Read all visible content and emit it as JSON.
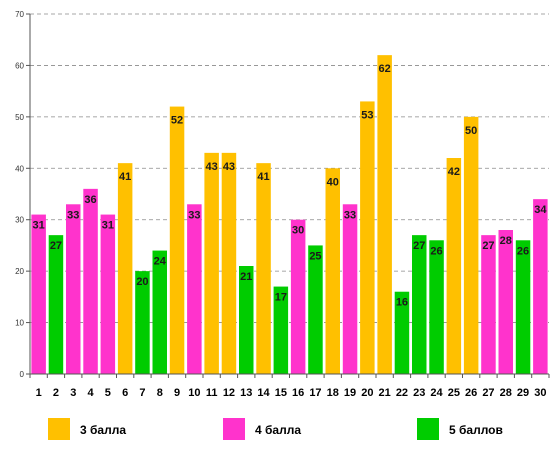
{
  "chart_data": {
    "type": "bar",
    "categories": [
      "1",
      "2",
      "3",
      "4",
      "5",
      "6",
      "7",
      "8",
      "9",
      "10",
      "11",
      "12",
      "13",
      "14",
      "15",
      "16",
      "17",
      "18",
      "19",
      "20",
      "21",
      "22",
      "23",
      "24",
      "25",
      "26",
      "27",
      "28",
      "29",
      "30"
    ],
    "values": [
      31,
      27,
      33,
      36,
      31,
      41,
      20,
      24,
      52,
      33,
      43,
      43,
      21,
      41,
      17,
      30,
      25,
      40,
      33,
      53,
      62,
      16,
      27,
      26,
      42,
      50,
      27,
      28,
      26,
      34
    ],
    "groups": [
      2,
      3,
      2,
      2,
      2,
      1,
      3,
      3,
      1,
      2,
      1,
      1,
      3,
      1,
      3,
      2,
      3,
      1,
      2,
      1,
      1,
      3,
      3,
      3,
      1,
      1,
      2,
      2,
      3,
      2
    ],
    "series": [
      {
        "key": 1,
        "name": "3 балла",
        "color": "#ffc000"
      },
      {
        "key": 2,
        "name": "4 балла",
        "color": "#ff33cc"
      },
      {
        "key": 3,
        "name": "5 баллов",
        "color": "#00cc00"
      }
    ],
    "ylim": [
      0,
      70
    ],
    "yticks": [
      0,
      10,
      20,
      30,
      40,
      50,
      60,
      70
    ],
    "grid": true,
    "legend_position": "bottom"
  }
}
